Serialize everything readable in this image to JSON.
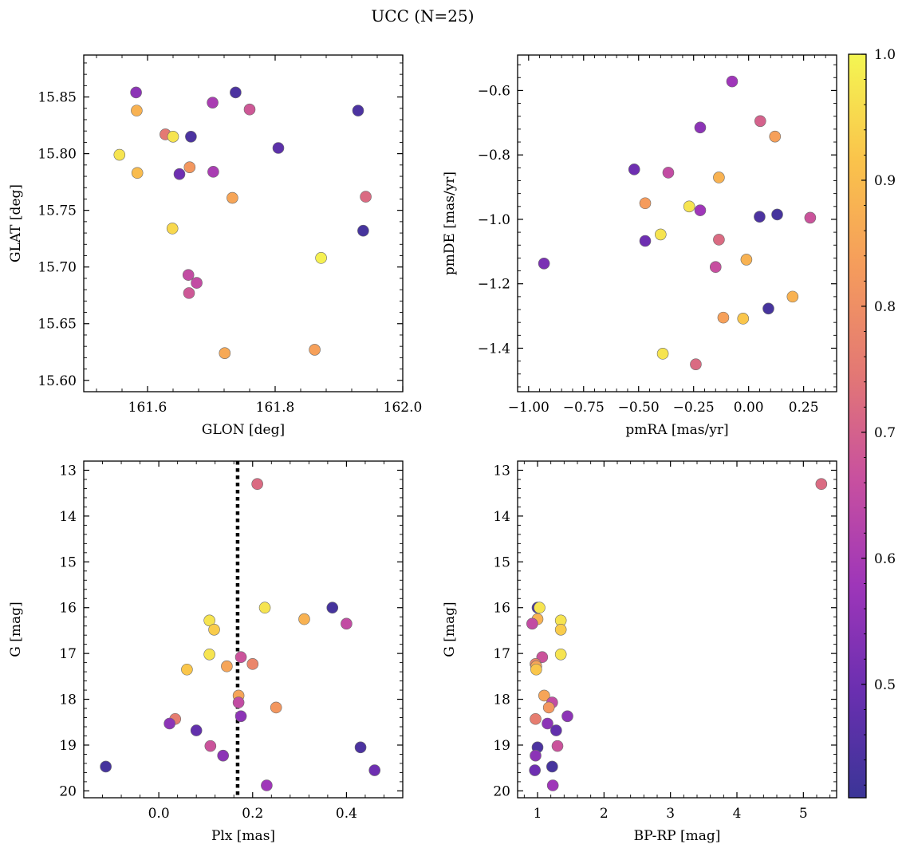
{
  "figure_title": "UCC (N=25)",
  "colorbar": {
    "range": [
      0.41,
      1.0
    ],
    "ticks": [
      0.5,
      0.6,
      0.7,
      0.8,
      0.9,
      1.0
    ],
    "tick_labels": [
      "0.5",
      "0.6",
      "0.7",
      "0.8",
      "0.9",
      "1.0"
    ],
    "colormap": "plasma (truncated 0.15-0.97)",
    "stops": [
      "#3b3597",
      "#6a2fb0",
      "#9e36b9",
      "#c8509f",
      "#e37874",
      "#f59c5c",
      "#fac34b",
      "#f4f652"
    ]
  },
  "chart_data": [
    {
      "name": "position",
      "type": "scatter",
      "xlabel": "GLON [deg]",
      "ylabel": "GLAT [deg]",
      "xlim": [
        161.5,
        162.0
      ],
      "ylim": [
        15.59,
        15.887
      ],
      "x_ticks": [
        161.6,
        161.8,
        162.0
      ],
      "x_tick_labels": [
        "161.6",
        "161.8",
        "162.0"
      ],
      "y_ticks": [
        15.6,
        15.65,
        15.7,
        15.75,
        15.8,
        15.85
      ],
      "y_tick_labels": [
        "15.60",
        "15.65",
        "15.70",
        "15.75",
        "15.80",
        "15.85"
      ],
      "points": [
        {
          "x": 161.582,
          "y": 15.854,
          "c": 0.55
        },
        {
          "x": 161.583,
          "y": 15.838,
          "c": 0.88
        },
        {
          "x": 161.738,
          "y": 15.854,
          "c": 0.44
        },
        {
          "x": 161.702,
          "y": 15.845,
          "c": 0.6
        },
        {
          "x": 161.76,
          "y": 15.839,
          "c": 0.68
        },
        {
          "x": 161.93,
          "y": 15.838,
          "c": 0.44
        },
        {
          "x": 161.628,
          "y": 15.817,
          "c": 0.75
        },
        {
          "x": 161.64,
          "y": 15.815,
          "c": 0.97
        },
        {
          "x": 161.668,
          "y": 15.815,
          "c": 0.44
        },
        {
          "x": 161.805,
          "y": 15.805,
          "c": 0.47
        },
        {
          "x": 161.556,
          "y": 15.799,
          "c": 0.97
        },
        {
          "x": 161.666,
          "y": 15.788,
          "c": 0.82
        },
        {
          "x": 161.584,
          "y": 15.783,
          "c": 0.9
        },
        {
          "x": 161.65,
          "y": 15.782,
          "c": 0.5
        },
        {
          "x": 161.703,
          "y": 15.784,
          "c": 0.6
        },
        {
          "x": 161.733,
          "y": 15.761,
          "c": 0.85
        },
        {
          "x": 161.942,
          "y": 15.762,
          "c": 0.72
        },
        {
          "x": 161.639,
          "y": 15.734,
          "c": 0.95
        },
        {
          "x": 161.938,
          "y": 15.732,
          "c": 0.43
        },
        {
          "x": 161.872,
          "y": 15.708,
          "c": 0.99
        },
        {
          "x": 161.664,
          "y": 15.693,
          "c": 0.65
        },
        {
          "x": 161.677,
          "y": 15.686,
          "c": 0.65
        },
        {
          "x": 161.665,
          "y": 15.677,
          "c": 0.68
        },
        {
          "x": 161.721,
          "y": 15.624,
          "c": 0.86
        },
        {
          "x": 161.862,
          "y": 15.627,
          "c": 0.84
        }
      ]
    },
    {
      "name": "proper-motion",
      "type": "scatter",
      "xlabel": "pmRA [mas/yr]",
      "ylabel": "pmDE [mas/yr]",
      "xlim": [
        -1.05,
        0.4
      ],
      "ylim": [
        -1.535,
        -0.49
      ],
      "x_ticks": [
        -1.0,
        -0.75,
        -0.5,
        -0.25,
        0.0,
        0.25
      ],
      "x_tick_labels": [
        "−1.00",
        "−0.75",
        "−0.50",
        "−0.25",
        "0.00",
        "0.25"
      ],
      "y_ticks": [
        -1.4,
        -1.2,
        -1.0,
        -0.8,
        -0.6
      ],
      "y_tick_labels": [
        "−1.4",
        "−1.2",
        "−1.0",
        "−0.8",
        "−0.6"
      ],
      "points": [
        {
          "x": -0.075,
          "y": -0.572,
          "c": 0.58
        },
        {
          "x": -0.22,
          "y": -0.715,
          "c": 0.55
        },
        {
          "x": 0.053,
          "y": -0.695,
          "c": 0.7
        },
        {
          "x": 0.12,
          "y": -0.743,
          "c": 0.84
        },
        {
          "x": -0.52,
          "y": -0.845,
          "c": 0.5
        },
        {
          "x": -0.365,
          "y": -0.855,
          "c": 0.65
        },
        {
          "x": -0.135,
          "y": -0.87,
          "c": 0.88
        },
        {
          "x": -0.47,
          "y": -0.95,
          "c": 0.83
        },
        {
          "x": -0.27,
          "y": -0.96,
          "c": 0.97
        },
        {
          "x": -0.22,
          "y": -0.972,
          "c": 0.58
        },
        {
          "x": 0.05,
          "y": -0.992,
          "c": 0.44
        },
        {
          "x": 0.13,
          "y": -0.985,
          "c": 0.43
        },
        {
          "x": 0.28,
          "y": -0.995,
          "c": 0.67
        },
        {
          "x": -0.4,
          "y": -1.047,
          "c": 0.97
        },
        {
          "x": -0.47,
          "y": -1.067,
          "c": 0.5
        },
        {
          "x": -0.135,
          "y": -1.063,
          "c": 0.72
        },
        {
          "x": -0.93,
          "y": -1.137,
          "c": 0.52
        },
        {
          "x": -0.15,
          "y": -1.148,
          "c": 0.66
        },
        {
          "x": -0.01,
          "y": -1.125,
          "c": 0.88
        },
        {
          "x": 0.2,
          "y": -1.24,
          "c": 0.88
        },
        {
          "x": 0.09,
          "y": -1.277,
          "c": 0.43
        },
        {
          "x": -0.115,
          "y": -1.305,
          "c": 0.84
        },
        {
          "x": -0.025,
          "y": -1.308,
          "c": 0.92
        },
        {
          "x": -0.39,
          "y": -1.417,
          "c": 0.97
        },
        {
          "x": -0.24,
          "y": -1.45,
          "c": 0.72
        }
      ]
    },
    {
      "name": "parallax-magnitude",
      "type": "scatter",
      "xlabel": "Plx [mas]",
      "ylabel": "G [mag]",
      "xlim": [
        -0.16,
        0.52
      ],
      "ylim": [
        20.15,
        12.8
      ],
      "x_ticks": [
        0.0,
        0.2,
        0.4
      ],
      "x_tick_labels": [
        "0.0",
        "0.2",
        "0.4"
      ],
      "y_ticks": [
        13,
        14,
        15,
        16,
        17,
        18,
        19,
        20
      ],
      "y_tick_labels": [
        "13",
        "14",
        "15",
        "16",
        "17",
        "18",
        "19",
        "20"
      ],
      "vertical_line": {
        "x": 0.168,
        "style": "dotted"
      },
      "points": [
        {
          "x": 0.21,
          "y": 13.3,
          "c": 0.72
        },
        {
          "x": 0.37,
          "y": 16.0,
          "c": 0.43
        },
        {
          "x": 0.226,
          "y": 16.0,
          "c": 0.97
        },
        {
          "x": 0.108,
          "y": 16.28,
          "c": 0.97
        },
        {
          "x": 0.31,
          "y": 16.25,
          "c": 0.88
        },
        {
          "x": 0.4,
          "y": 16.35,
          "c": 0.65
        },
        {
          "x": 0.118,
          "y": 16.48,
          "c": 0.93
        },
        {
          "x": 0.108,
          "y": 17.02,
          "c": 0.97
        },
        {
          "x": 0.175,
          "y": 17.08,
          "c": 0.67
        },
        {
          "x": 0.2,
          "y": 17.23,
          "c": 0.78
        },
        {
          "x": 0.145,
          "y": 17.28,
          "c": 0.85
        },
        {
          "x": 0.06,
          "y": 17.35,
          "c": 0.92
        },
        {
          "x": 0.17,
          "y": 17.92,
          "c": 0.85
        },
        {
          "x": 0.17,
          "y": 18.07,
          "c": 0.65
        },
        {
          "x": 0.25,
          "y": 18.18,
          "c": 0.82
        },
        {
          "x": 0.175,
          "y": 18.37,
          "c": 0.55
        },
        {
          "x": 0.035,
          "y": 18.43,
          "c": 0.76
        },
        {
          "x": 0.023,
          "y": 18.53,
          "c": 0.55
        },
        {
          "x": 0.08,
          "y": 18.68,
          "c": 0.48
        },
        {
          "x": 0.11,
          "y": 19.02,
          "c": 0.67
        },
        {
          "x": 0.43,
          "y": 19.05,
          "c": 0.44
        },
        {
          "x": 0.137,
          "y": 19.23,
          "c": 0.55
        },
        {
          "x": -0.113,
          "y": 19.47,
          "c": 0.43
        },
        {
          "x": 0.46,
          "y": 19.55,
          "c": 0.5
        },
        {
          "x": 0.23,
          "y": 19.88,
          "c": 0.58
        }
      ]
    },
    {
      "name": "color-magnitude",
      "type": "scatter",
      "xlabel": "BP-RP [mag]",
      "ylabel": "G [mag]",
      "xlim": [
        0.7,
        5.5
      ],
      "ylim": [
        20.15,
        12.8
      ],
      "x_ticks": [
        1,
        2,
        3,
        4,
        5
      ],
      "x_tick_labels": [
        "1",
        "2",
        "3",
        "4",
        "5"
      ],
      "y_ticks": [
        13,
        14,
        15,
        16,
        17,
        18,
        19,
        20
      ],
      "y_tick_labels": [
        "13",
        "14",
        "15",
        "16",
        "17",
        "18",
        "19",
        "20"
      ],
      "points": [
        {
          "x": 5.27,
          "y": 13.3,
          "c": 0.72
        },
        {
          "x": 1.0,
          "y": 16.0,
          "c": 0.43
        },
        {
          "x": 1.03,
          "y": 16.0,
          "c": 0.97
        },
        {
          "x": 1.35,
          "y": 16.28,
          "c": 0.97
        },
        {
          "x": 1.0,
          "y": 16.25,
          "c": 0.88
        },
        {
          "x": 0.92,
          "y": 16.35,
          "c": 0.65
        },
        {
          "x": 1.35,
          "y": 16.48,
          "c": 0.93
        },
        {
          "x": 1.35,
          "y": 17.02,
          "c": 0.97
        },
        {
          "x": 1.07,
          "y": 17.08,
          "c": 0.67
        },
        {
          "x": 0.97,
          "y": 17.23,
          "c": 0.78
        },
        {
          "x": 0.98,
          "y": 17.28,
          "c": 0.85
        },
        {
          "x": 0.98,
          "y": 17.35,
          "c": 0.92
        },
        {
          "x": 1.1,
          "y": 17.92,
          "c": 0.85
        },
        {
          "x": 1.22,
          "y": 18.07,
          "c": 0.65
        },
        {
          "x": 1.17,
          "y": 18.18,
          "c": 0.82
        },
        {
          "x": 1.45,
          "y": 18.37,
          "c": 0.55
        },
        {
          "x": 0.97,
          "y": 18.43,
          "c": 0.76
        },
        {
          "x": 1.15,
          "y": 18.53,
          "c": 0.55
        },
        {
          "x": 1.28,
          "y": 18.68,
          "c": 0.48
        },
        {
          "x": 1.3,
          "y": 19.02,
          "c": 0.67
        },
        {
          "x": 1.0,
          "y": 19.05,
          "c": 0.44
        },
        {
          "x": 0.97,
          "y": 19.23,
          "c": 0.55
        },
        {
          "x": 1.22,
          "y": 19.47,
          "c": 0.43
        },
        {
          "x": 0.96,
          "y": 19.55,
          "c": 0.5
        },
        {
          "x": 1.23,
          "y": 19.88,
          "c": 0.58
        }
      ]
    }
  ]
}
